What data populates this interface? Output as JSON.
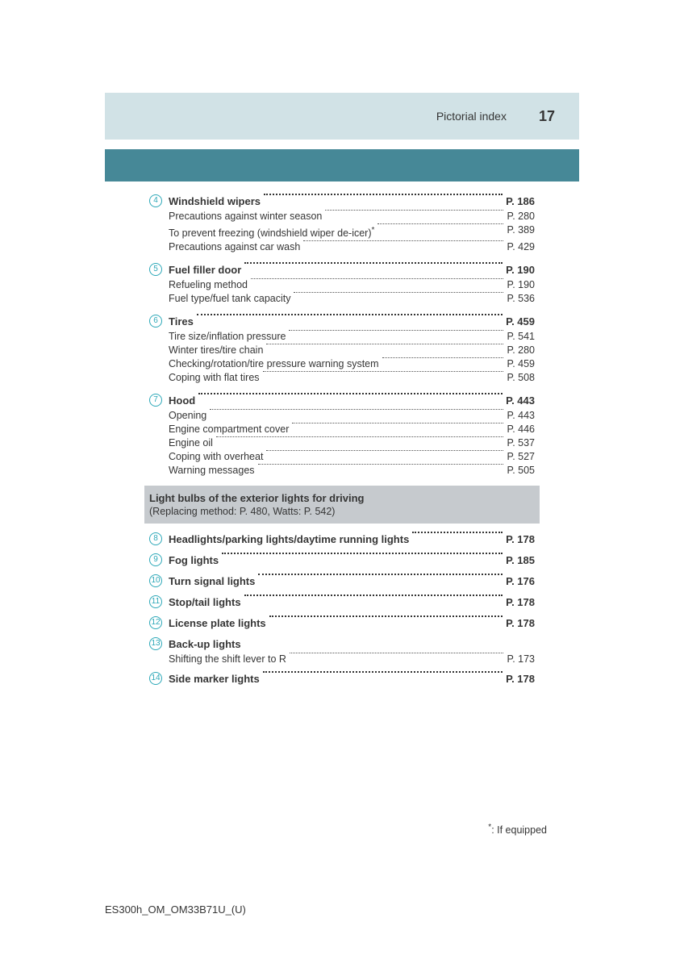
{
  "header": {
    "title": "Pictorial index",
    "page": "17"
  },
  "sections_a": [
    {
      "num": "4",
      "title": "Windshield wipers",
      "page": "P. 186",
      "subs": [
        {
          "t": "Precautions against winter season",
          "p": "P. 280"
        },
        {
          "t": "To prevent freezing (windshield wiper de-icer)",
          "star": true,
          "p": "P. 389"
        },
        {
          "t": "Precautions against car wash",
          "p": "P. 429"
        }
      ]
    },
    {
      "num": "5",
      "title": "Fuel filler door",
      "page": "P. 190",
      "subs": [
        {
          "t": "Refueling method",
          "p": "P. 190"
        },
        {
          "t": "Fuel type/fuel tank capacity",
          "p": "P. 536"
        }
      ]
    },
    {
      "num": "6",
      "title": "Tires",
      "page": "P. 459",
      "subs": [
        {
          "t": "Tire size/inflation pressure",
          "p": "P. 541"
        },
        {
          "t": "Winter tires/tire chain",
          "p": "P. 280"
        },
        {
          "t": "Checking/rotation/tire pressure warning system",
          "p": "P. 459"
        },
        {
          "t": "Coping with flat tires",
          "p": "P. 508"
        }
      ]
    },
    {
      "num": "7",
      "title": "Hood",
      "page": "P. 443",
      "subs": [
        {
          "t": "Opening",
          "p": "P. 443"
        },
        {
          "t": "Engine compartment cover",
          "p": "P. 446"
        },
        {
          "t": "Engine oil",
          "p": "P. 537"
        },
        {
          "t": "Coping with overheat",
          "p": "P. 527"
        },
        {
          "t": "Warning messages",
          "p": "P. 505"
        }
      ]
    }
  ],
  "gray_box": {
    "title": "Light bulbs of the exterior lights for driving",
    "sub": "(Replacing method: P. 480, Watts: P. 542)"
  },
  "sections_b": [
    {
      "num": "8",
      "title": "Headlights/parking lights/daytime running lights",
      "page": "P. 178"
    },
    {
      "num": "9",
      "title": "Fog lights",
      "page": "P. 185"
    },
    {
      "num": "10",
      "title": "Turn signal lights",
      "page": "P. 176"
    },
    {
      "num": "11",
      "title": "Stop/tail lights",
      "page": "P. 178"
    },
    {
      "num": "12",
      "title": "License plate lights",
      "page": "P. 178"
    },
    {
      "num": "13",
      "title": "Back-up lights",
      "no_page": true,
      "subs": [
        {
          "t": "Shifting the shift lever to R",
          "p": "P. 173"
        }
      ]
    },
    {
      "num": "14",
      "title": "Side marker lights",
      "page": "P. 178"
    }
  ],
  "footnote_star": "*",
  "footnote_text": ": If equipped",
  "doc_code": "ES300h_OM_OM33B71U_(U)",
  "colors": {
    "light_teal": "#d1e2e6",
    "teal": "#468897",
    "circle": "#2da8b8",
    "gray_box": "#c6cace",
    "text": "#353535"
  }
}
